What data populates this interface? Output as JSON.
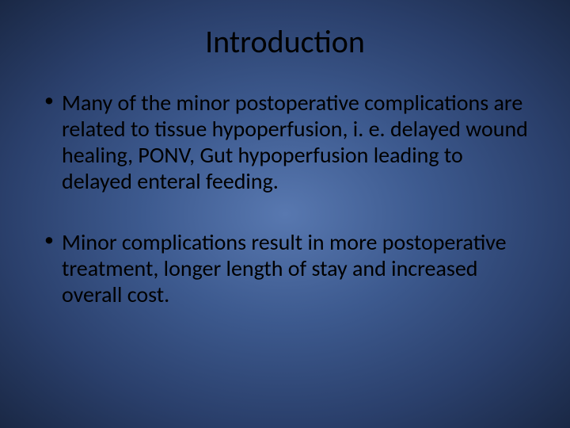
{
  "slide": {
    "title": "Introduction",
    "bullets": [
      "Many of the minor postoperative complications are related to tissue hypoperfusion, i. e. delayed wound healing, PONV, Gut hypoperfusion leading to delayed enteral feeding.",
      "Minor complications result in more postoperative treatment, longer length of stay and increased overall cost."
    ],
    "colors": {
      "background_center": "#5878b0",
      "background_mid": "#3d5a8f",
      "background_outer": "#2a3f6b",
      "background_edge": "#1a2845",
      "text": "#000000"
    },
    "typography": {
      "title_fontsize": 40,
      "body_fontsize": 28,
      "font_family": "Calibri"
    }
  }
}
